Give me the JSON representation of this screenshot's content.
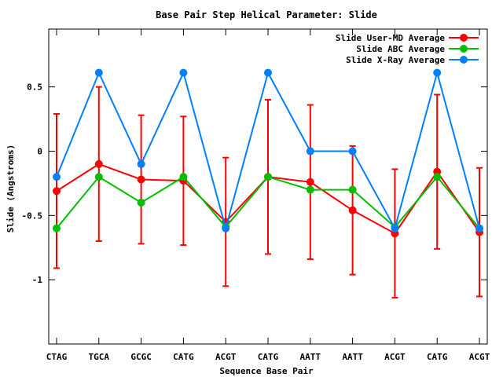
{
  "chart_data": {
    "type": "line",
    "title": "Base Pair Step Helical Parameter: Slide",
    "xlabel": "Sequence Base Pair",
    "ylabel": "Slide (Angstroms)",
    "categories": [
      "CTAG",
      "TGCA",
      "GCGC",
      "CATG",
      "ACGT",
      "CATG",
      "AATT",
      "AATT",
      "ACGT",
      "CATG",
      "ACGT"
    ],
    "ylim": [
      -1.5,
      0.95
    ],
    "yticks": [
      {
        "value": 0.5,
        "label": "0.5"
      },
      {
        "value": 0,
        "label": "0"
      },
      {
        "value": -0.5,
        "label": "-0.5"
      },
      {
        "value": -1,
        "label": "-1"
      }
    ],
    "grid": false,
    "legend_position": "top-right",
    "series": [
      {
        "name": "Slide User-MD Average",
        "color": "#ff0000",
        "values": [
          -0.31,
          -0.1,
          -0.22,
          -0.23,
          -0.55,
          -0.2,
          -0.24,
          -0.46,
          -0.64,
          -0.16,
          -0.63
        ],
        "error": [
          0.6,
          0.6,
          0.5,
          0.5,
          0.5,
          0.6,
          0.6,
          0.5,
          0.5,
          0.6,
          0.5
        ]
      },
      {
        "name": "Slide ABC Average",
        "color": "#00c000",
        "values": [
          -0.6,
          -0.2,
          -0.4,
          -0.2,
          -0.59,
          -0.2,
          -0.3,
          -0.3,
          -0.59,
          -0.2,
          -0.6
        ]
      },
      {
        "name": "Slide X-Ray Average",
        "color": "#0080ff",
        "values": [
          -0.2,
          0.61,
          -0.1,
          0.61,
          -0.6,
          0.61,
          0.0,
          0.0,
          -0.6,
          0.61,
          -0.6
        ]
      }
    ]
  }
}
